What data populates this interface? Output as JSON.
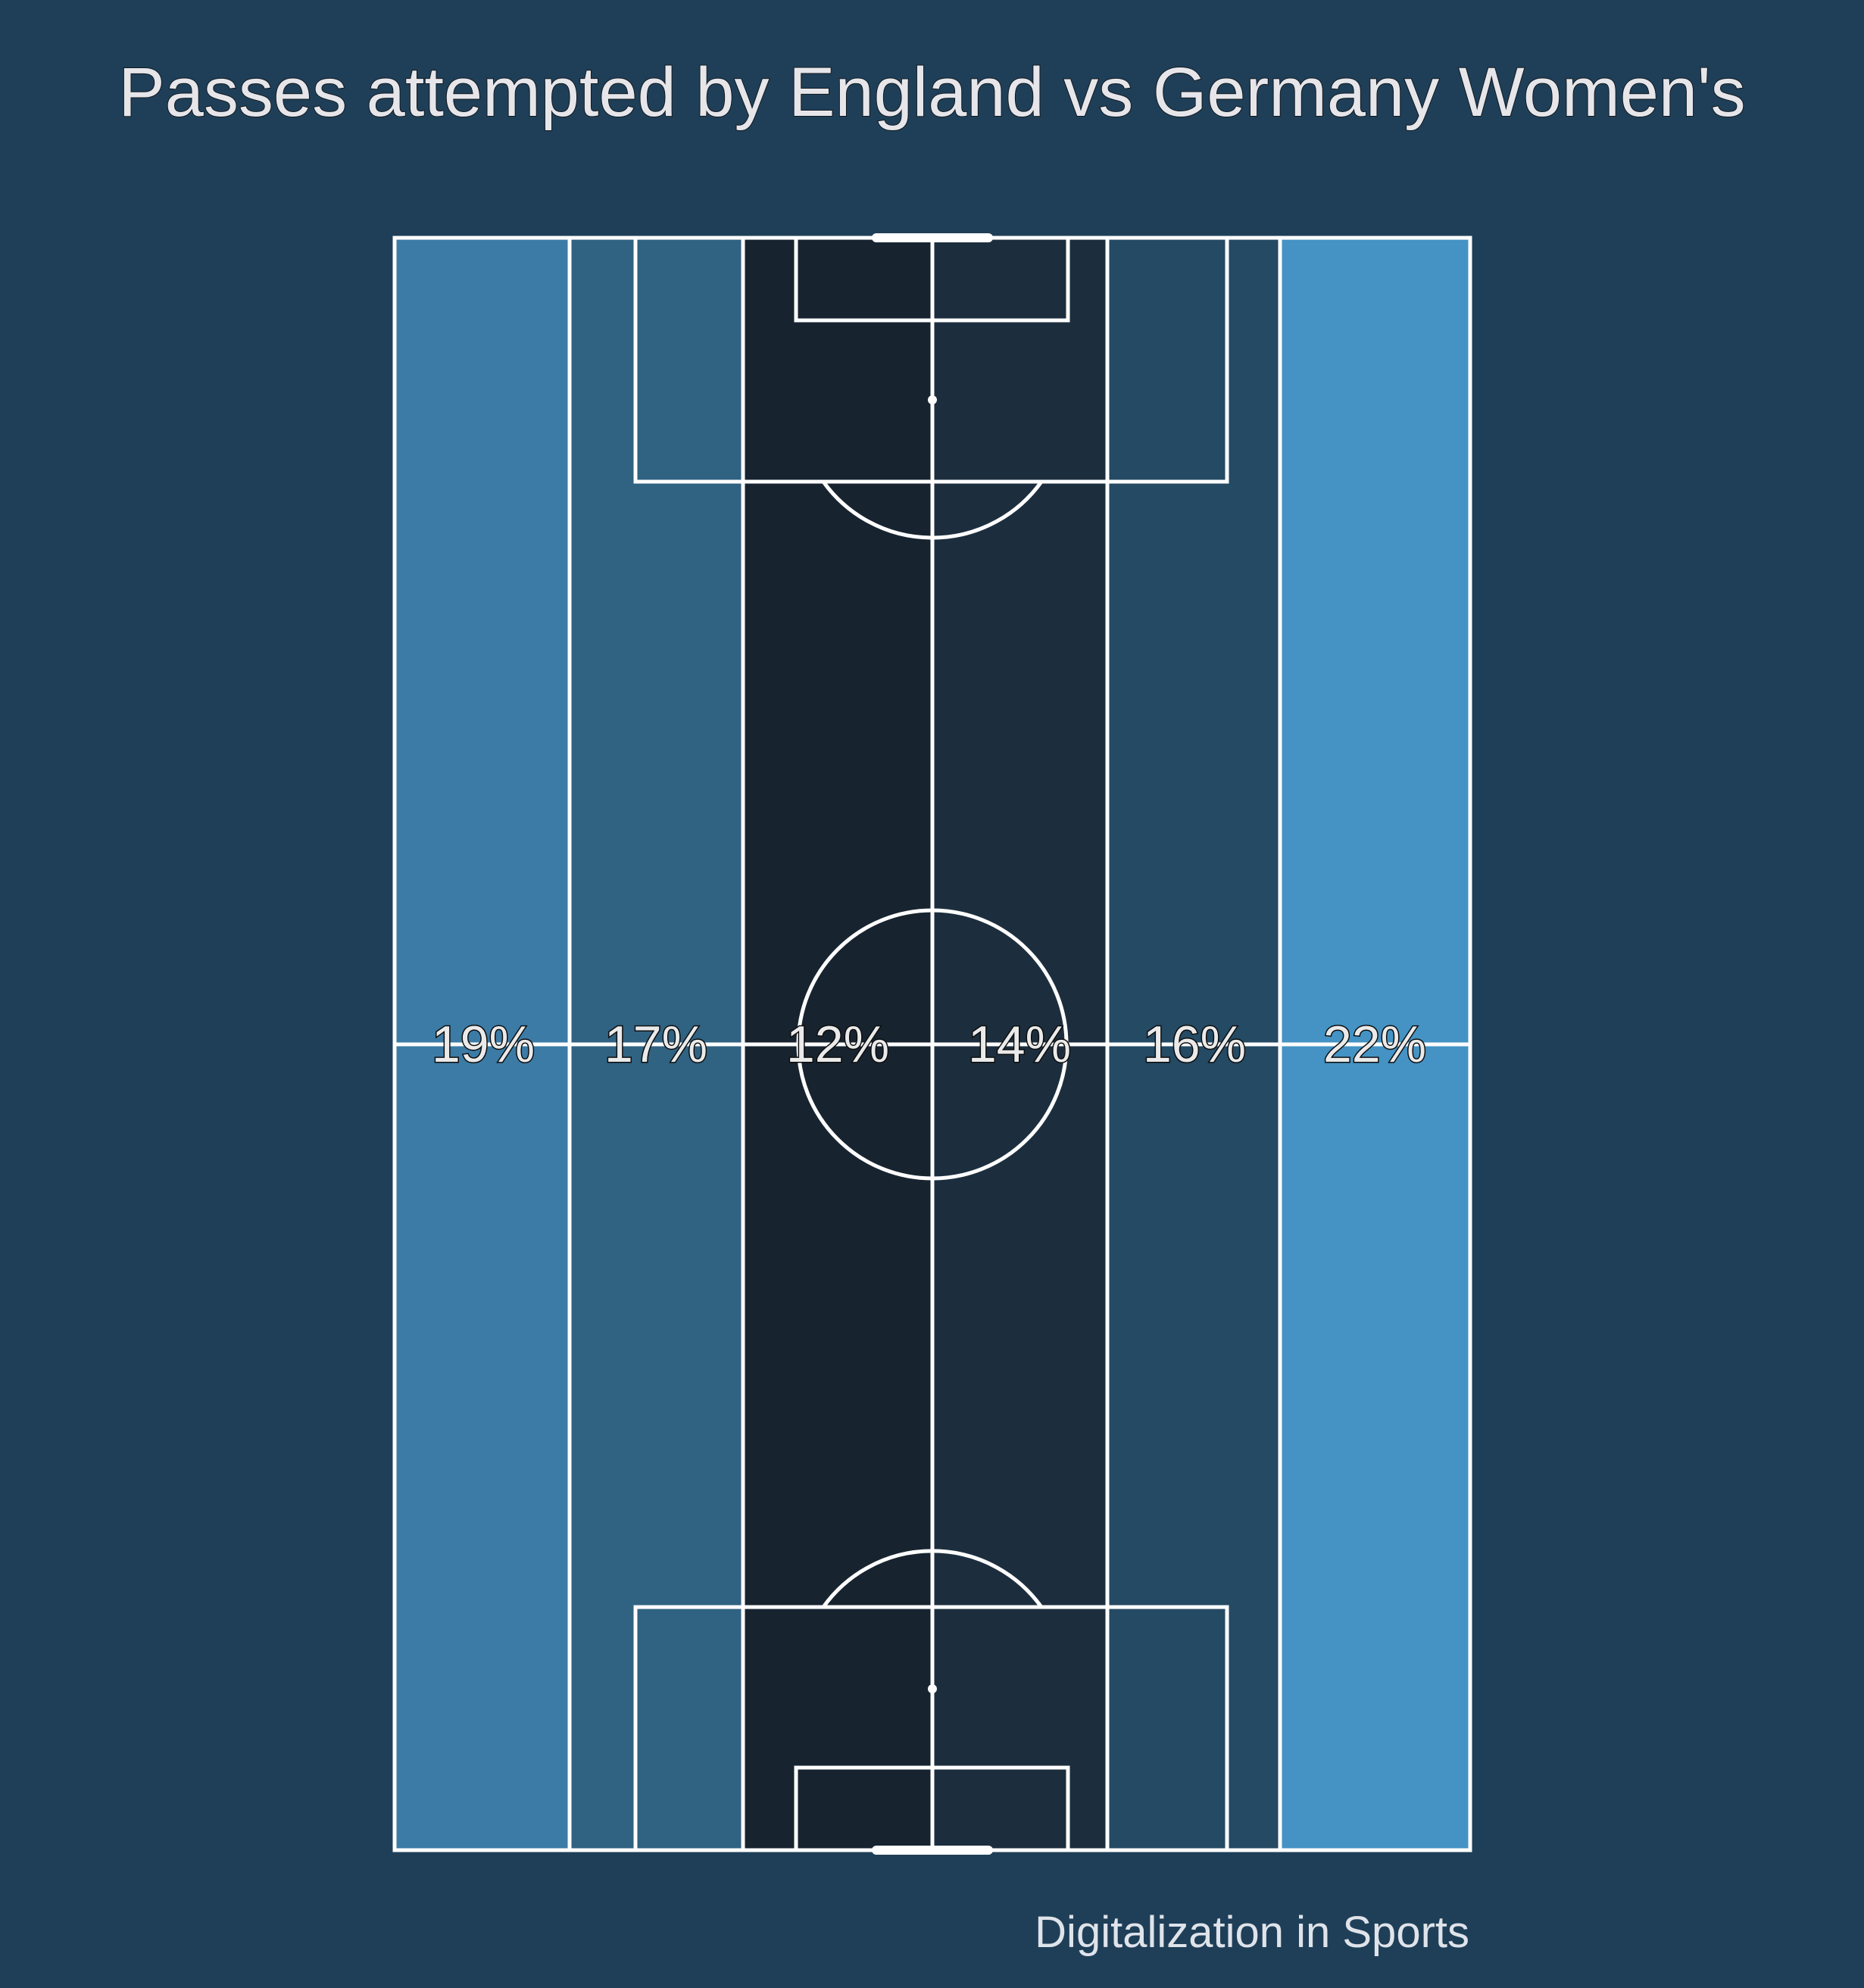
{
  "title": "Passes attempted by England vs Germany Women's",
  "credit": "Digitalization in Sports",
  "colors": {
    "background": "#1f3f58",
    "pitch_lines": "#ffffff",
    "label_text": "#eaeaea"
  },
  "chart_data": {
    "type": "heatmap",
    "title": "Passes attempted by England vs Germany Women's",
    "orientation": "vertical pitch, split into 6 vertical channels (left to right)",
    "channels": [
      {
        "label": "19%",
        "value": 19,
        "color": "#3b7ba6"
      },
      {
        "label": "17%",
        "value": 17,
        "color": "#306282"
      },
      {
        "label": "12%",
        "value": 12,
        "color": "#172430"
      },
      {
        "label": "14%",
        "value": 14,
        "color": "#1c2e3e"
      },
      {
        "label": "16%",
        "value": 16,
        "color": "#244a64"
      },
      {
        "label": "22%",
        "value": 22,
        "color": "#4493c4"
      }
    ]
  }
}
